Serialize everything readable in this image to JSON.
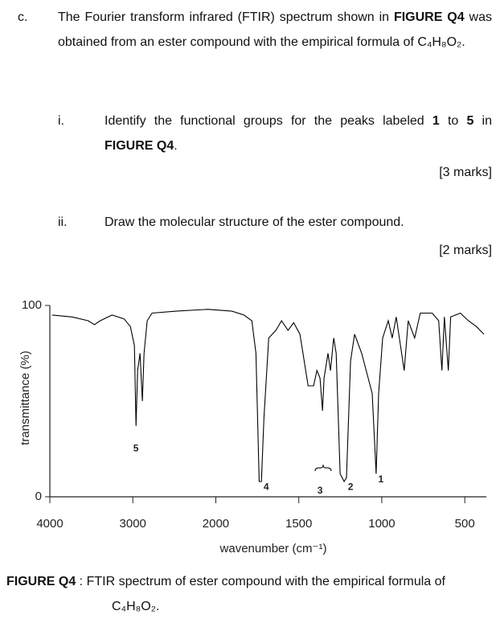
{
  "question": {
    "label": "c.",
    "text": [
      "The Fourier transform infrared (FTIR) spectrum shown in ",
      "FIGURE Q4",
      " was obtained from an ester compound with the empirical formula of C₄H₈O₂."
    ],
    "parts": [
      {
        "label": "i.",
        "text": [
          "Identify the functional groups for the peaks labeled ",
          "1",
          " to ",
          "5",
          " in ",
          "FIGURE Q4",
          "."
        ],
        "marks": "[3 marks]"
      },
      {
        "label": "ii.",
        "text": [
          "Draw the molecular structure of the ester compound."
        ],
        "marks": "[2 marks]"
      }
    ]
  },
  "chart_data": {
    "type": "line",
    "ylabel": "transmittance (%)",
    "xlabel": "wavenumber (cm⁻¹)",
    "color": "#000000",
    "xlim": [
      4000,
      370
    ],
    "xscale_break": 2000,
    "xticks": [
      4000,
      3000,
      2000,
      1500,
      1000,
      500
    ],
    "ylim": [
      0,
      100
    ],
    "yticks": [
      0,
      100
    ],
    "x": [
      3971,
      3731,
      3538,
      3462,
      3394,
      3250,
      3106,
      3029,
      2981,
      2962,
      2942,
      2913,
      2885,
      2865,
      2827,
      2769,
      2481,
      2096,
      1903,
      1831,
      1783,
      1758,
      1739,
      1725,
      1710,
      1681,
      1638,
      1604,
      1565,
      1531,
      1493,
      1444,
      1411,
      1391,
      1372,
      1357,
      1348,
      1324,
      1309,
      1290,
      1275,
      1251,
      1227,
      1213,
      1188,
      1164,
      1121,
      1082,
      1058,
      1034,
      1019,
      995,
      961,
      937,
      913,
      865,
      841,
      802,
      768,
      696,
      657,
      638,
      623,
      599,
      585,
      527,
      478,
      430,
      385
    ],
    "values": [
      95,
      94,
      92,
      90,
      92,
      95,
      93,
      89,
      79,
      37,
      66,
      75,
      50,
      75,
      92,
      96,
      97,
      98,
      97,
      95,
      92,
      75,
      8,
      8,
      41,
      83,
      87,
      92,
      87,
      91,
      85,
      58,
      58,
      66,
      62,
      45,
      62,
      75,
      66,
      83,
      75,
      12,
      8,
      10,
      71,
      85,
      75,
      62,
      54,
      12,
      54,
      83,
      92,
      83,
      94,
      66,
      92,
      83,
      96,
      96,
      92,
      66,
      94,
      66,
      94,
      96,
      92,
      89,
      85
    ],
    "annotations": [
      {
        "text": "5",
        "x": 2962,
        "y": 25
      },
      {
        "text": "4",
        "x": 1696,
        "y": 5
      },
      {
        "text": "3",
        "x": 1372,
        "y": 3
      },
      {
        "text": "2",
        "x": 1188,
        "y": 5
      },
      {
        "text": "1",
        "x": 1005,
        "y": 9
      }
    ]
  },
  "caption": {
    "label": "FIGURE Q4",
    "separator": " : ",
    "text": "FTIR spectrum of ester compound with the empirical formula of C₄H₈O₂."
  }
}
